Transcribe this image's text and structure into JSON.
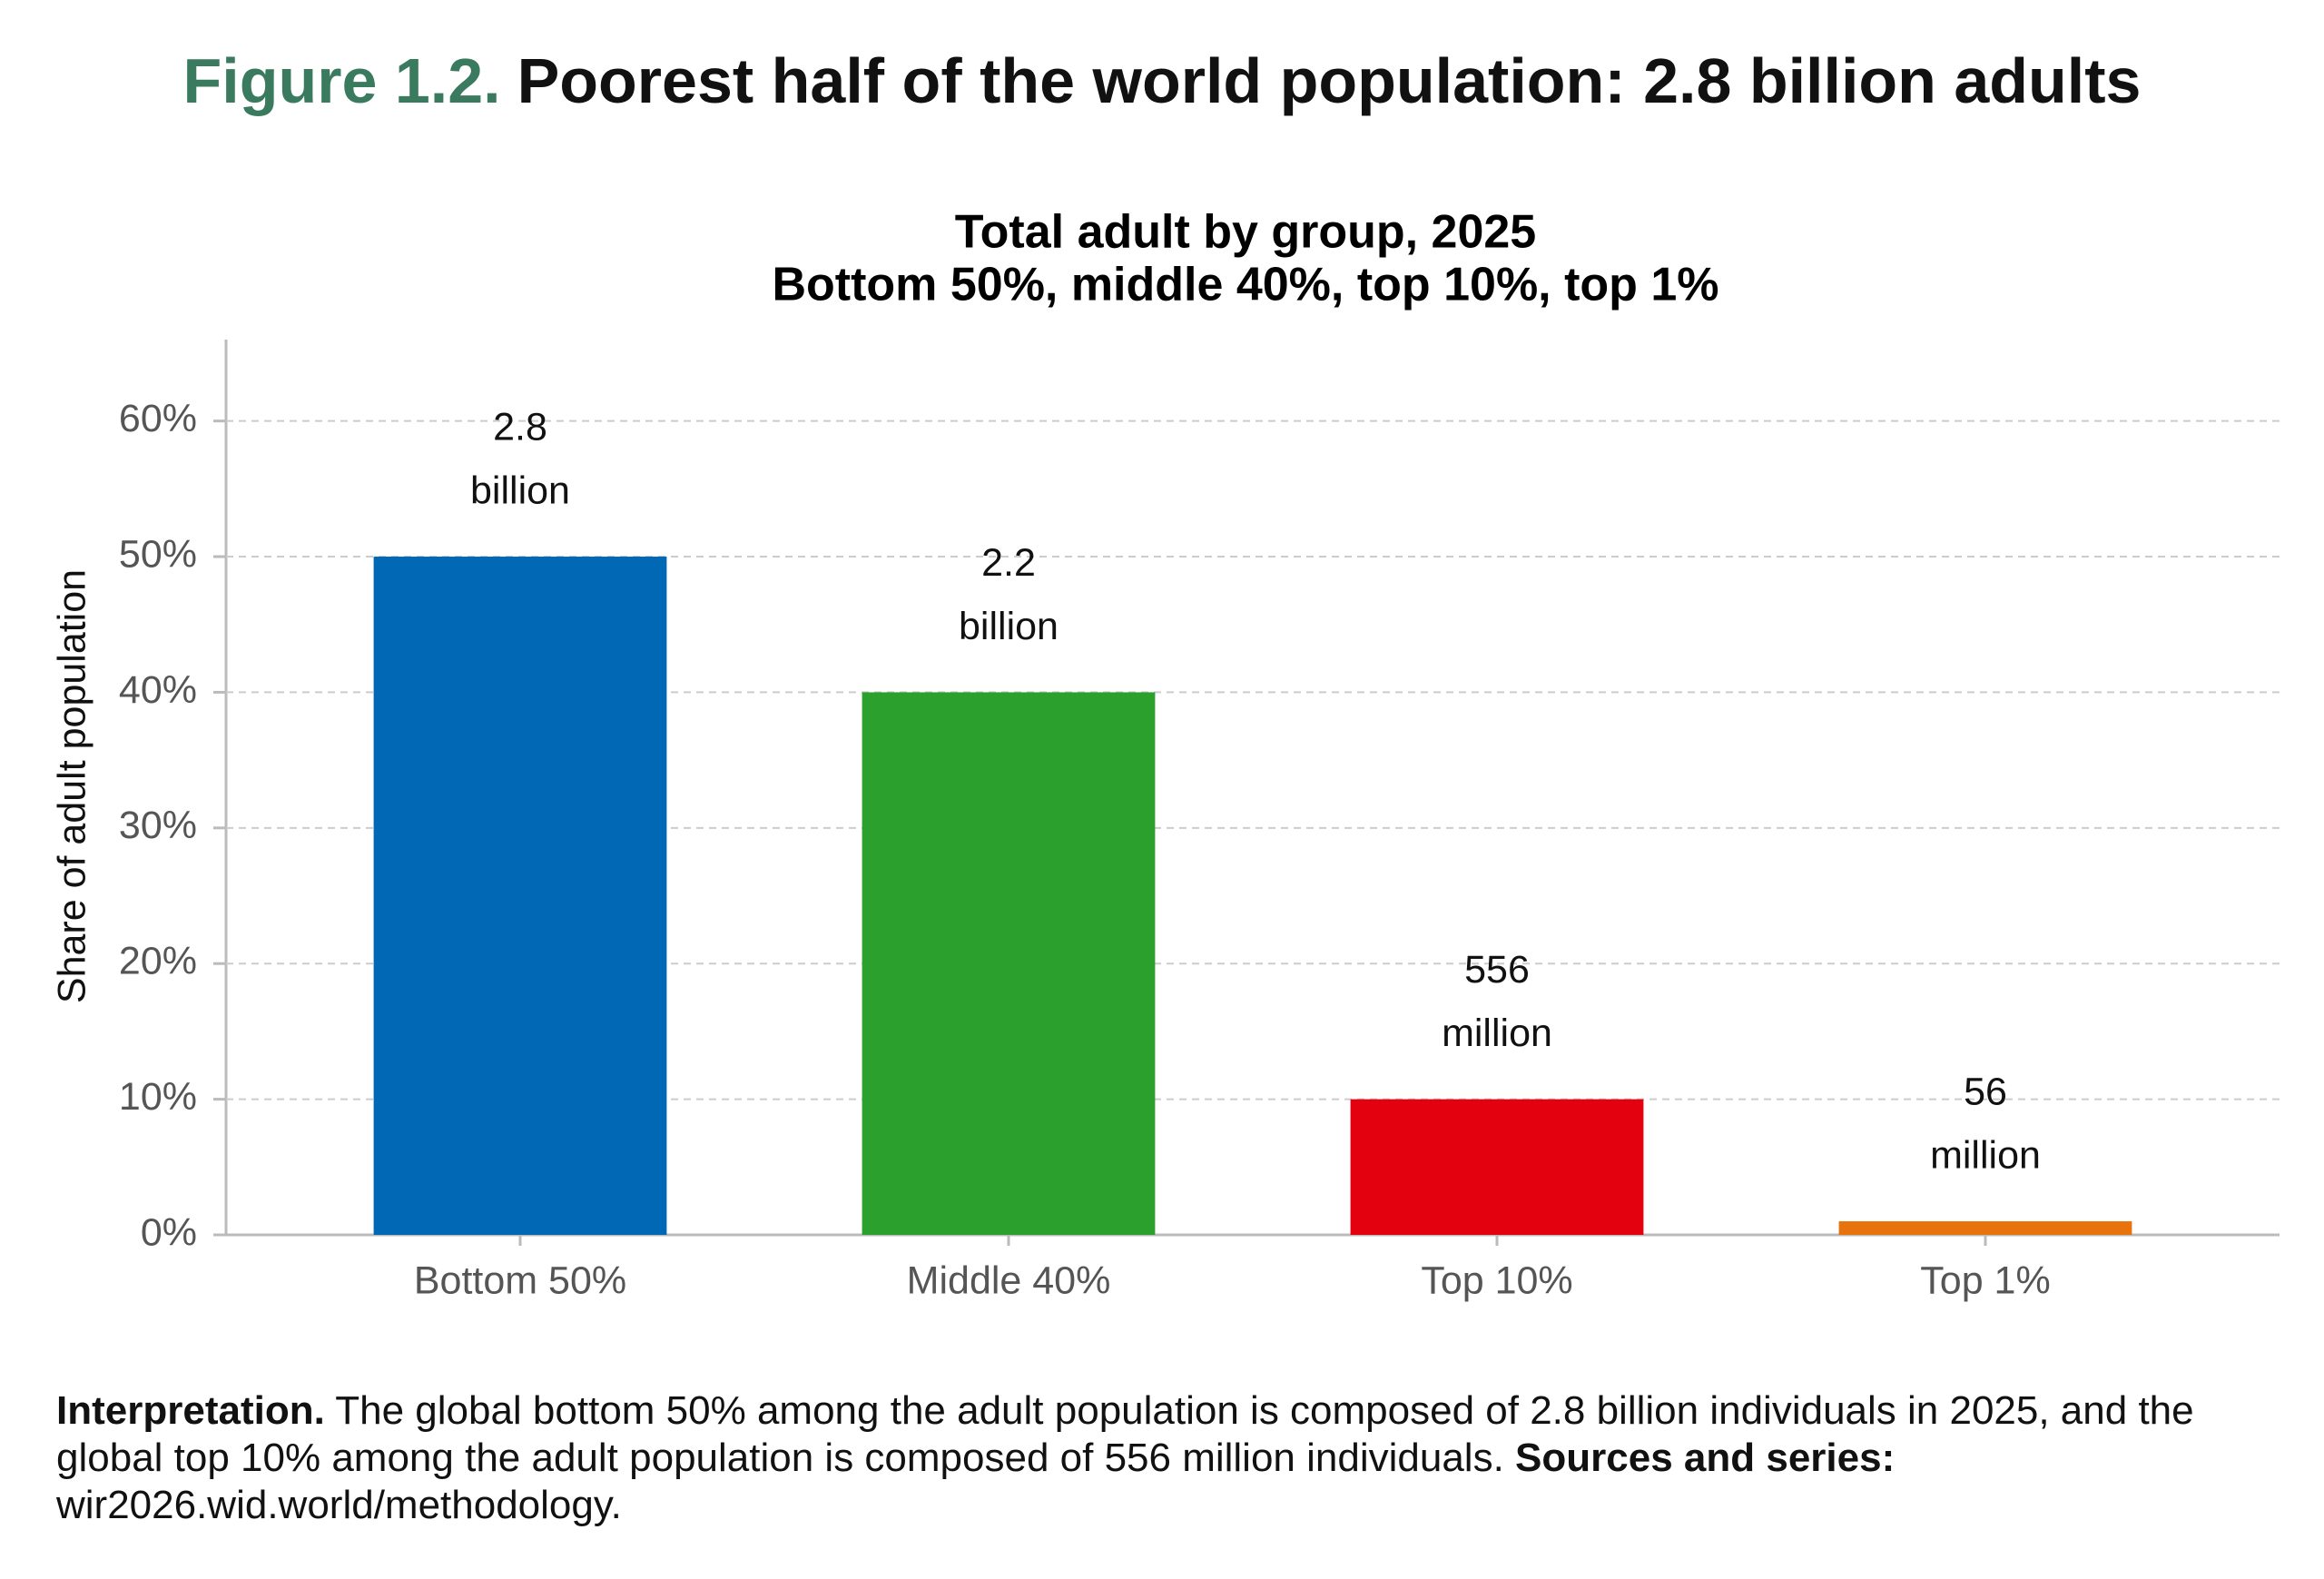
{
  "figure_label": "Figure 1.2.",
  "title": "Poorest half of the world population: 2.8 billion adults",
  "chart_data": {
    "type": "bar",
    "subtitle": [
      "Total adult by group, 2025",
      "Bottom 50%, middle 40%, top 10%, top 1%"
    ],
    "y_label": "Share of adult population",
    "categories": [
      "Bottom 50%",
      "Middle 40%",
      "Top 10%",
      "Top 1%"
    ],
    "values": [
      50,
      40,
      10,
      1
    ],
    "colors": [
      "#0068b4",
      "#2ca02c",
      "#e3000f",
      "#e8720c"
    ],
    "annotations": [
      [
        "2.8",
        "billion"
      ],
      [
        "2.2",
        "billion"
      ],
      [
        "556",
        "million"
      ],
      [
        "56",
        "million"
      ]
    ],
    "ylim": [
      0,
      66
    ],
    "yticks": [
      {
        "value": 0,
        "label": "0%"
      },
      {
        "value": 10,
        "label": "10%"
      },
      {
        "value": 20,
        "label": "20%"
      },
      {
        "value": 30,
        "label": "30%"
      },
      {
        "value": 40,
        "label": "40%"
      },
      {
        "value": 50,
        "label": "50%"
      },
      {
        "value": 60,
        "label": "60%"
      }
    ],
    "grid": true
  },
  "note": {
    "label": "Interpretation.",
    "text": "The global bottom 50% among the adult population is composed of 2.8 billion individuals in 2025, and the global top 10% among the adult population is composed of 556 million individuals.",
    "sources_label": "Sources and series:",
    "sources": "wir2026.wid.world/methodology."
  }
}
